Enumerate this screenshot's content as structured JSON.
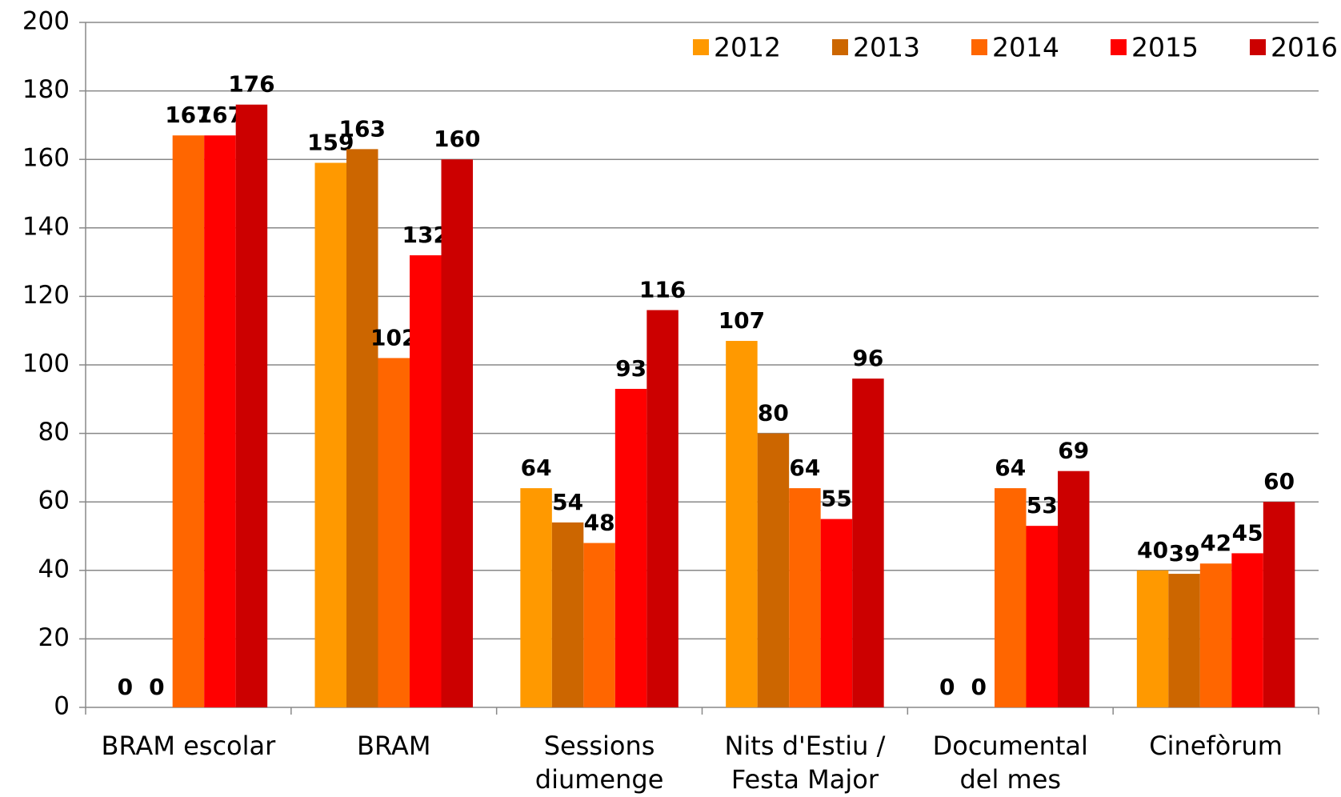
{
  "chart_data": {
    "type": "bar",
    "categories": [
      [
        "BRAM escolar"
      ],
      [
        "BRAM"
      ],
      [
        "Sessions",
        "diumenge"
      ],
      [
        "Nits d'Estiu /",
        "Festa Major"
      ],
      [
        "Documental",
        "del mes"
      ],
      [
        "Cinefòrum"
      ]
    ],
    "series": [
      {
        "name": "2012",
        "color": "#ff9900",
        "values": [
          0,
          159,
          64,
          107,
          0,
          40
        ]
      },
      {
        "name": "2013",
        "color": "#cc6600",
        "values": [
          0,
          163,
          54,
          80,
          0,
          39
        ]
      },
      {
        "name": "2014",
        "color": "#ff6600",
        "values": [
          167,
          102,
          48,
          64,
          64,
          42
        ]
      },
      {
        "name": "2015",
        "color": "#ff0000",
        "values": [
          167,
          132,
          93,
          55,
          53,
          45
        ]
      },
      {
        "name": "2016",
        "color": "#cc0000",
        "values": [
          176,
          160,
          116,
          96,
          69,
          60
        ]
      }
    ],
    "ylim": [
      0,
      200
    ],
    "yticks": [
      0,
      20,
      40,
      60,
      80,
      100,
      120,
      140,
      160,
      180,
      200
    ],
    "grid": true,
    "legend": "top-right"
  }
}
